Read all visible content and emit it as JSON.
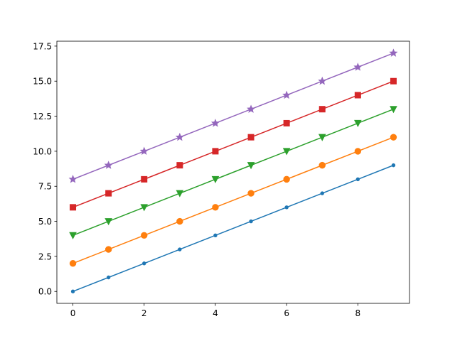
{
  "chart_data": {
    "type": "line",
    "x": [
      0,
      1,
      2,
      3,
      4,
      5,
      6,
      7,
      8,
      9
    ],
    "series": [
      {
        "color": "#1f77b4",
        "marker": "point",
        "values": [
          0,
          1,
          2,
          3,
          4,
          5,
          6,
          7,
          8,
          9
        ]
      },
      {
        "color": "#ff7f0e",
        "marker": "circle",
        "values": [
          2,
          3,
          4,
          5,
          6,
          7,
          8,
          9,
          10,
          11
        ]
      },
      {
        "color": "#2ca02c",
        "marker": "triangle-down",
        "values": [
          4,
          5,
          6,
          7,
          8,
          9,
          10,
          11,
          12,
          13
        ]
      },
      {
        "color": "#d62728",
        "marker": "square",
        "values": [
          6,
          7,
          8,
          9,
          10,
          11,
          12,
          13,
          14,
          15
        ]
      },
      {
        "color": "#9467bd",
        "marker": "star",
        "values": [
          8,
          9,
          10,
          11,
          12,
          13,
          14,
          15,
          16,
          17
        ]
      }
    ],
    "xlim": [
      -0.45,
      9.45
    ],
    "xticks": [
      0,
      2,
      4,
      6,
      8
    ],
    "ylim": [
      -0.85,
      17.85
    ],
    "yticks": [
      {
        "value": 0,
        "label": "0.0"
      },
      2.5,
      {
        "value": 5,
        "label": "5.0"
      },
      7.5,
      {
        "value": 10,
        "label": "10.0"
      },
      12.5,
      {
        "value": 15,
        "label": "15.0"
      },
      17.5
    ]
  }
}
